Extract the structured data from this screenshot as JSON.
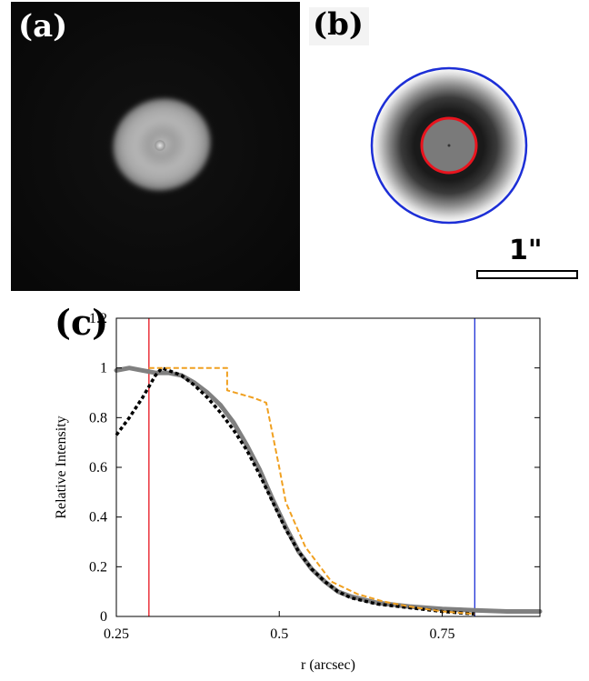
{
  "labels": {
    "a": "(a)",
    "b": "(b)",
    "c": "(c)"
  },
  "scale_bar": {
    "label": "1\""
  },
  "colors": {
    "inner_ring": "#e8141e",
    "outer_ring": "#1d2fd6",
    "model_dashed": "#f0a020",
    "observed_gray": "#808080",
    "fit_black": "#000000"
  },
  "chart_data": {
    "type": "line",
    "title": "",
    "xlabel": "r (arcsec)",
    "ylabel": "Relative Intensity",
    "xlim": [
      0.25,
      0.9
    ],
    "ylim": [
      0,
      1.2
    ],
    "xticks": [
      0.25,
      0.5,
      0.75
    ],
    "yticks": [
      0,
      0.2,
      0.4,
      0.6,
      0.8,
      1,
      1.2
    ],
    "vlines": [
      {
        "x": 0.3,
        "color": "#e8141e"
      },
      {
        "x": 0.8,
        "color": "#1d2fd6"
      }
    ],
    "series": [
      {
        "style": "solid-gray-thick",
        "color": "#808080",
        "x": [
          0.25,
          0.27,
          0.29,
          0.31,
          0.33,
          0.35,
          0.37,
          0.39,
          0.41,
          0.43,
          0.45,
          0.47,
          0.49,
          0.51,
          0.53,
          0.55,
          0.57,
          0.59,
          0.61,
          0.65,
          0.7,
          0.75,
          0.8,
          0.85,
          0.9
        ],
        "y": [
          0.99,
          1.0,
          0.99,
          0.98,
          0.98,
          0.97,
          0.94,
          0.9,
          0.85,
          0.78,
          0.69,
          0.59,
          0.47,
          0.36,
          0.26,
          0.19,
          0.14,
          0.1,
          0.08,
          0.055,
          0.04,
          0.03,
          0.025,
          0.02,
          0.02
        ]
      },
      {
        "style": "dotted-black",
        "color": "#000000",
        "x": [
          0.25,
          0.27,
          0.29,
          0.31,
          0.32,
          0.33,
          0.35,
          0.37,
          0.39,
          0.41,
          0.43,
          0.45,
          0.47,
          0.49,
          0.51,
          0.53,
          0.55,
          0.57,
          0.59,
          0.61,
          0.65,
          0.7,
          0.75,
          0.8
        ],
        "y": [
          0.73,
          0.8,
          0.88,
          0.97,
          1.0,
          0.99,
          0.97,
          0.93,
          0.88,
          0.82,
          0.75,
          0.67,
          0.57,
          0.46,
          0.35,
          0.26,
          0.19,
          0.14,
          0.1,
          0.075,
          0.05,
          0.035,
          0.02,
          0.01
        ]
      },
      {
        "style": "dashed-orange",
        "color": "#f0a020",
        "x": [
          0.3,
          0.42,
          0.42,
          0.46,
          0.48,
          0.5,
          0.51,
          0.54,
          0.58,
          0.62,
          0.66,
          0.7,
          0.75,
          0.8
        ],
        "y": [
          1.0,
          1.0,
          0.91,
          0.88,
          0.86,
          0.6,
          0.46,
          0.28,
          0.14,
          0.09,
          0.06,
          0.04,
          0.02,
          0.01
        ]
      }
    ]
  }
}
